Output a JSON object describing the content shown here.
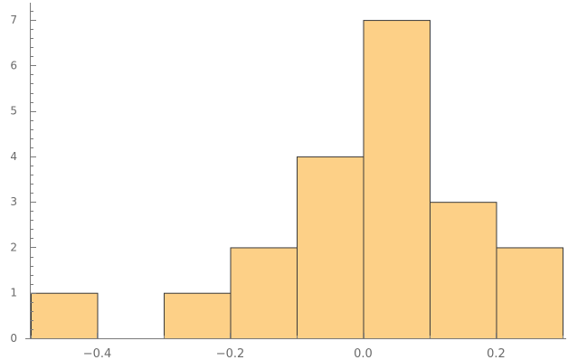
{
  "chart_data": {
    "type": "bar",
    "subtype": "histogram",
    "title": "",
    "xlabel": "",
    "ylabel": "",
    "bin_edges": [
      -0.5,
      -0.4,
      -0.3,
      -0.2,
      -0.1,
      0.0,
      0.1,
      0.2,
      0.3
    ],
    "values": [
      1,
      0,
      1,
      2,
      4,
      7,
      3,
      2
    ],
    "xlim": [
      -0.5,
      0.3
    ],
    "ylim": [
      0,
      7.3
    ],
    "x_ticks": {
      "major": [
        -0.4,
        -0.2,
        0.0,
        0.2
      ],
      "major_labels": [
        "−0.4",
        "−0.2",
        "0.0",
        "0.2"
      ],
      "minor": [
        -0.5,
        -0.3,
        -0.1,
        0.1,
        0.3
      ]
    },
    "y_ticks": {
      "major": [
        0,
        1,
        2,
        3,
        4,
        5,
        6,
        7
      ],
      "major_labels": [
        "0",
        "1",
        "2",
        "3",
        "4",
        "5",
        "6",
        "7"
      ]
    },
    "grid": false,
    "bar_color": "#fdd087",
    "bar_edge_color": "#3a3a3a",
    "axis_color": "#7a7a7a",
    "label_color": "#6a6a6a"
  }
}
